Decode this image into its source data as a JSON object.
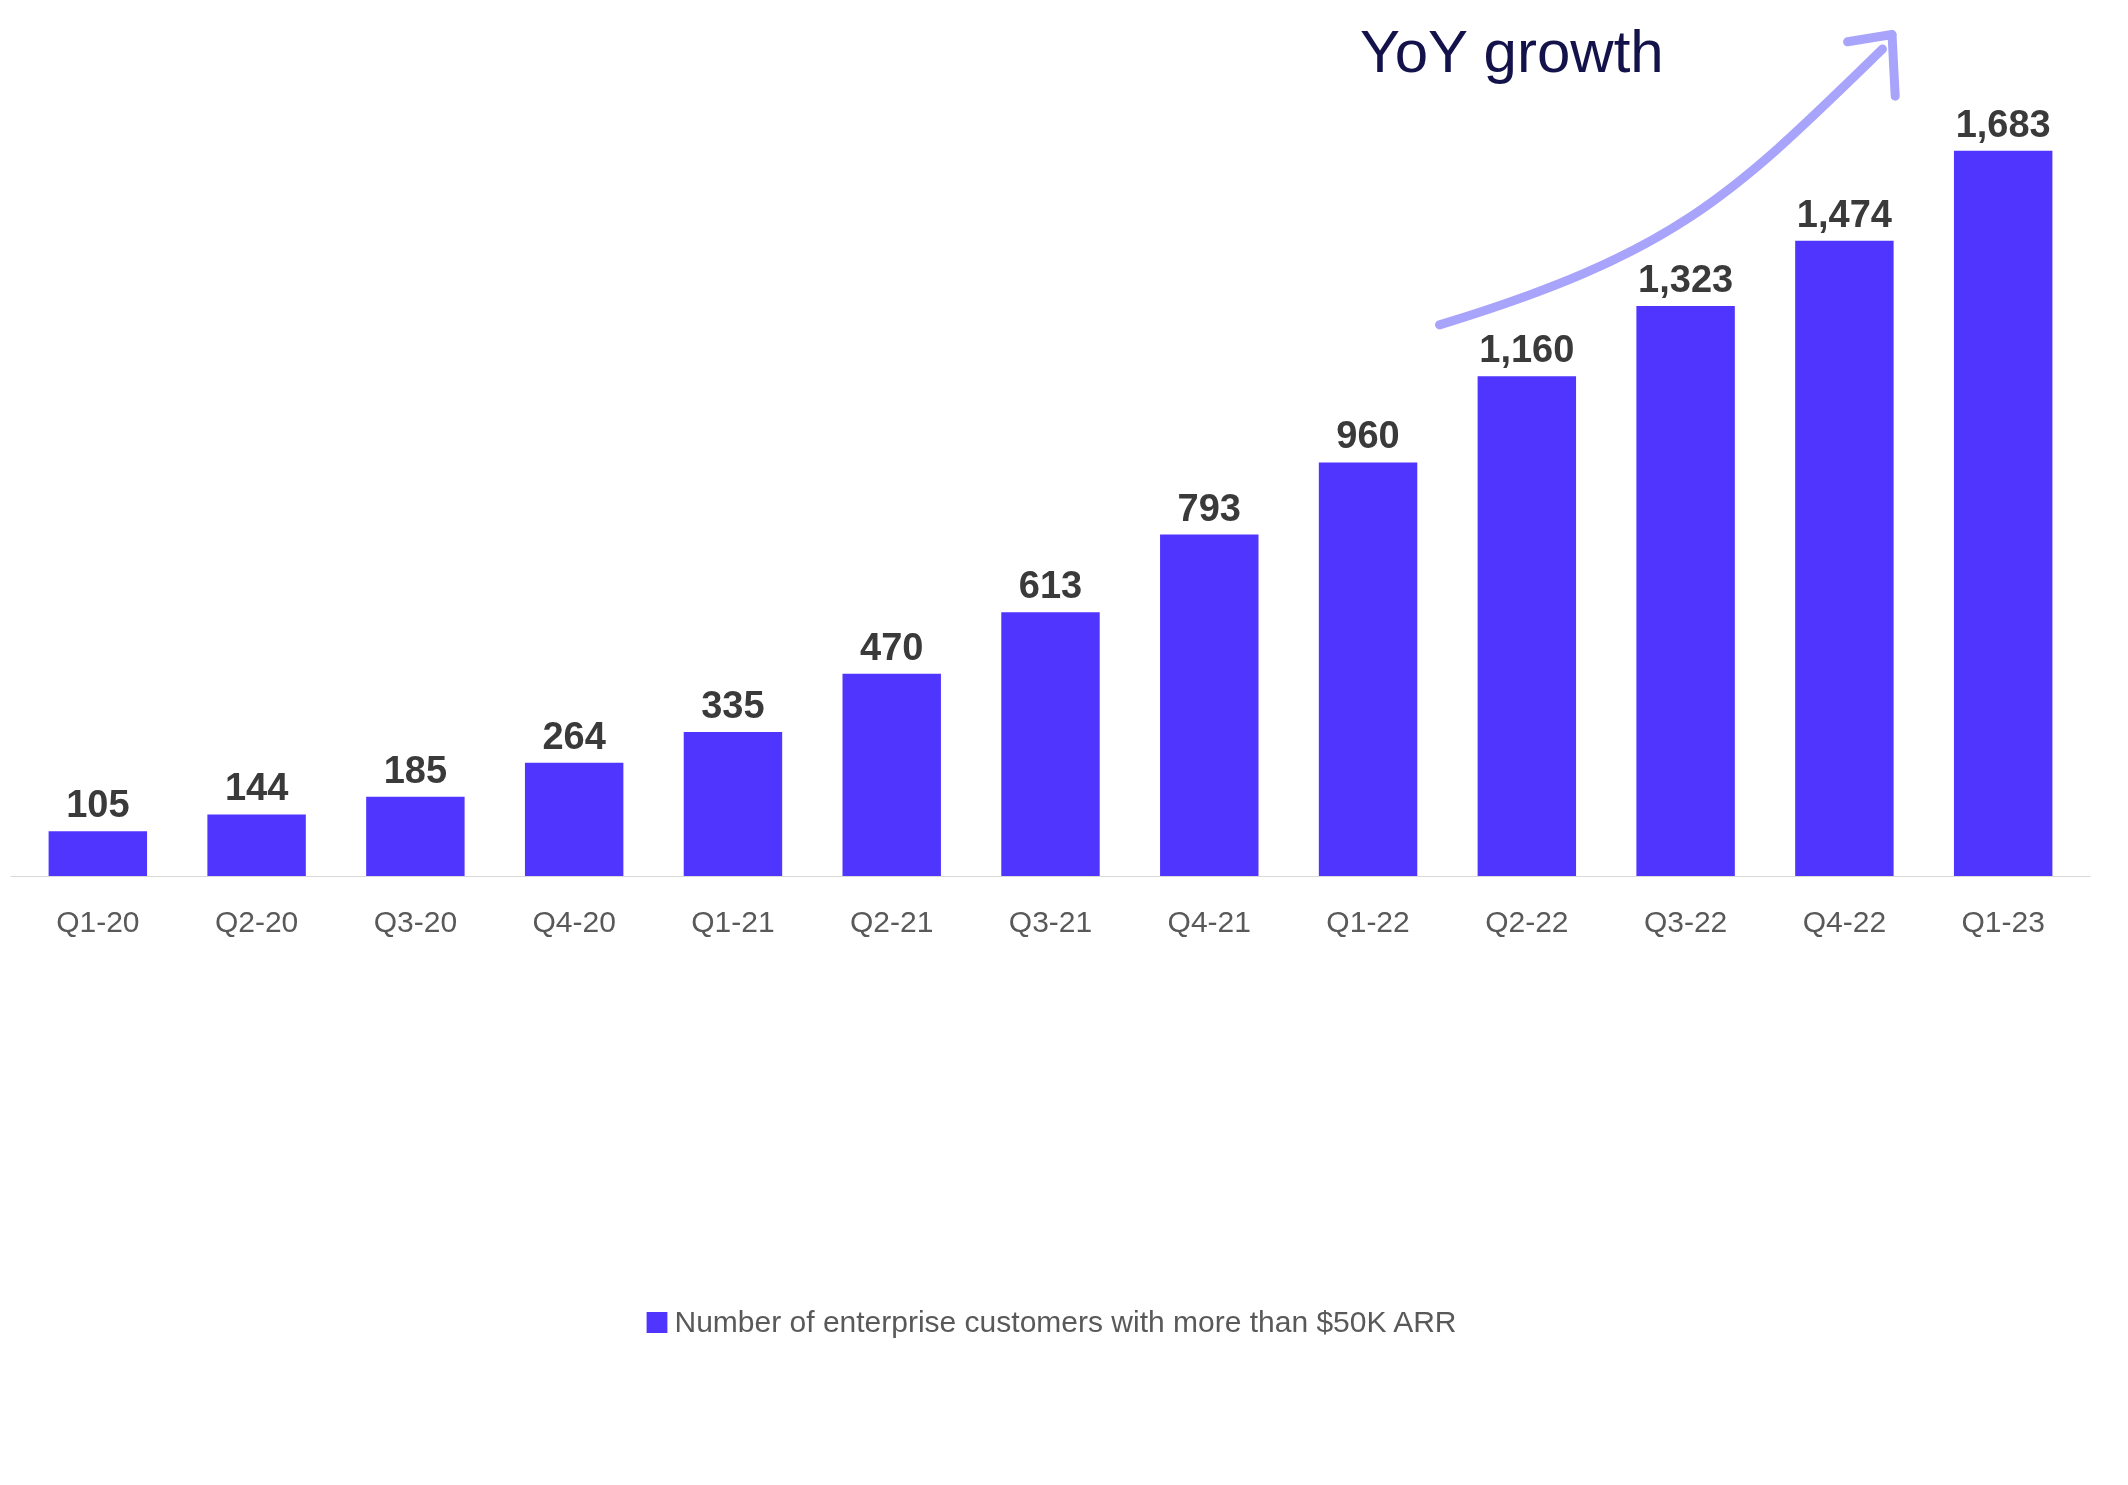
{
  "chart_data": {
    "type": "bar",
    "categories": [
      "Q1-20",
      "Q2-20",
      "Q3-20",
      "Q4-20",
      "Q1-21",
      "Q2-21",
      "Q3-21",
      "Q4-21",
      "Q1-22",
      "Q2-22",
      "Q3-22",
      "Q4-22",
      "Q1-23"
    ],
    "series": [
      {
        "name": "Number of enterprise customers with more than $50K ARR",
        "color": "#5035ff",
        "values": [
          105,
          144,
          185,
          264,
          335,
          470,
          613,
          793,
          960,
          1160,
          1323,
          1474,
          1683
        ],
        "value_labels": [
          "105",
          "144",
          "185",
          "264",
          "335",
          "470",
          "613",
          "793",
          "960",
          "1,160",
          "1,323",
          "1,474",
          "1,683"
        ]
      }
    ],
    "grid": false,
    "legend": "bottom",
    "annotations": [
      "YoY growth"
    ]
  }
}
